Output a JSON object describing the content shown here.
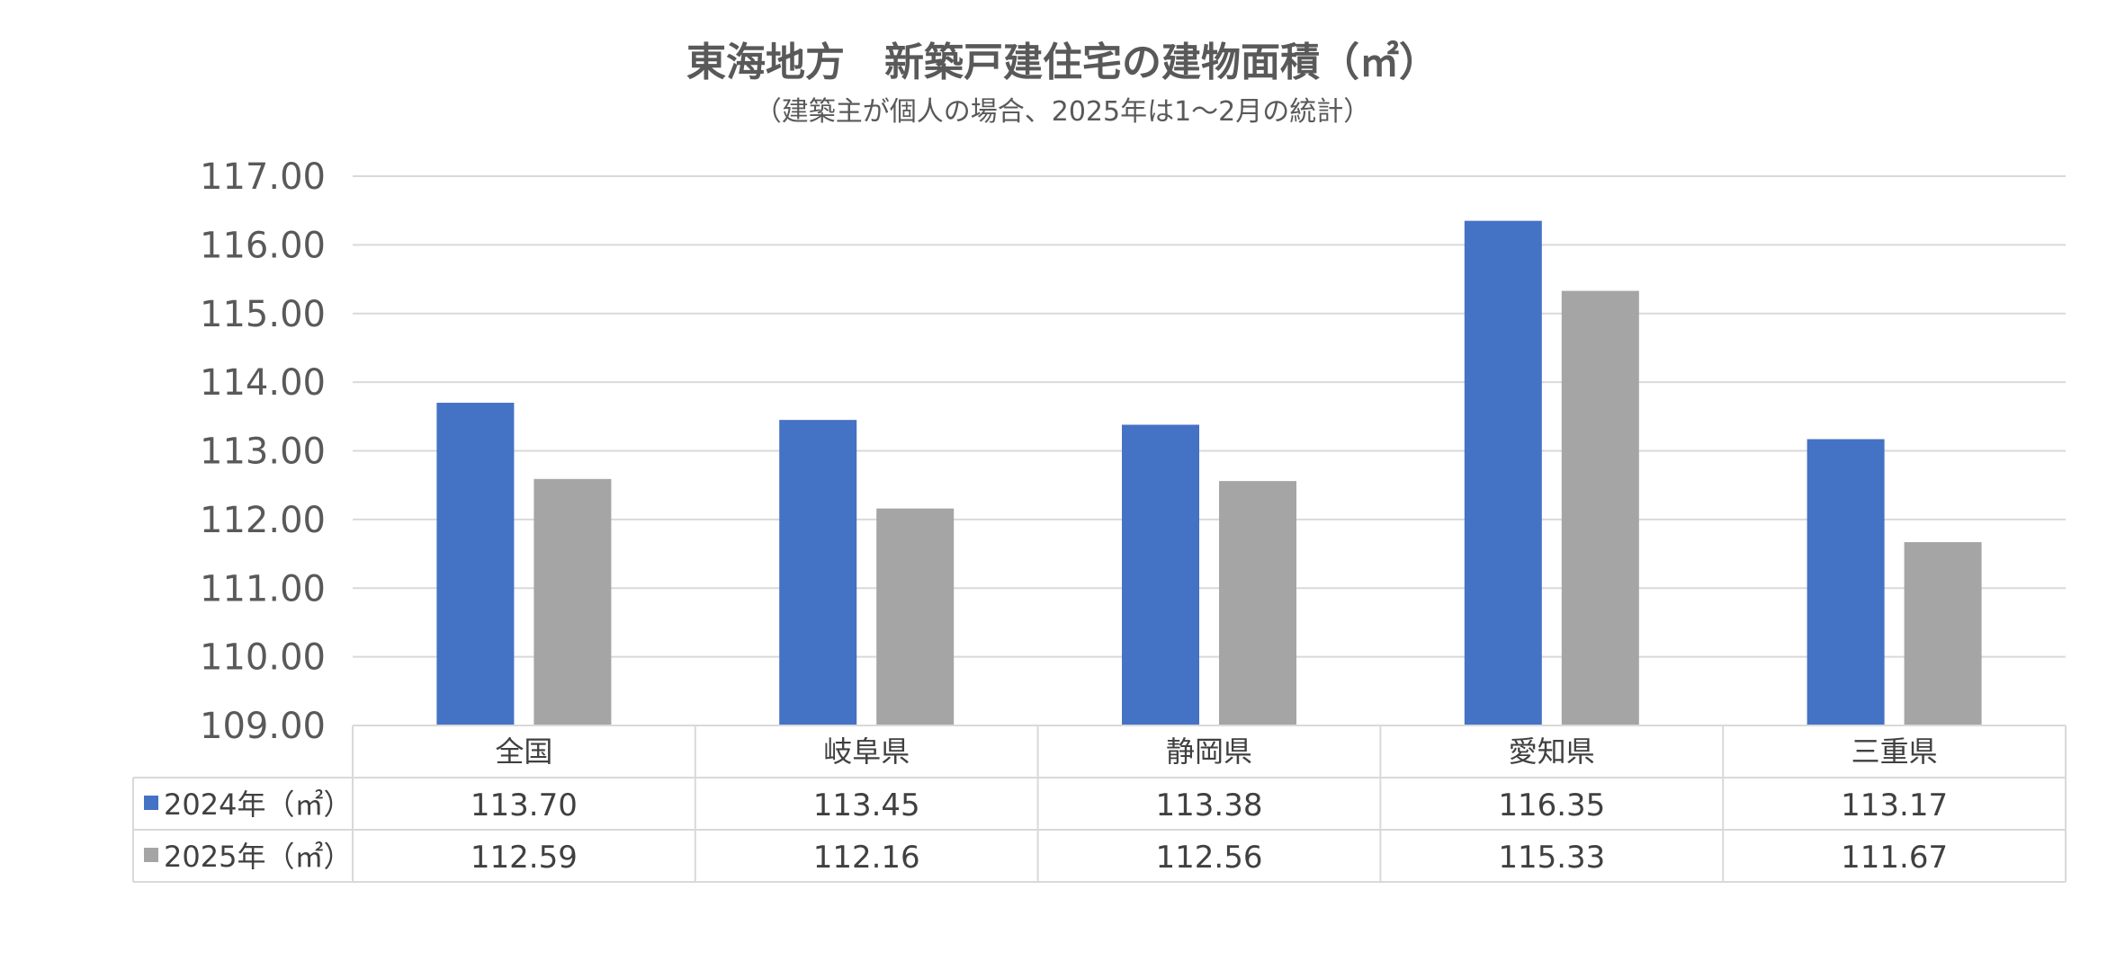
{
  "chart_data": {
    "type": "bar",
    "title": "東海地方　新築戸建住宅の建物面積（㎡）",
    "subtitle": "（建築主が個人の場合、2025年は1～2月の統計）",
    "categories": [
      "全国",
      "岐阜県",
      "静岡県",
      "愛知県",
      "三重県"
    ],
    "series": [
      {
        "name": "2024年（㎡）",
        "color": "#4472C4",
        "values": [
          113.7,
          113.45,
          113.38,
          116.35,
          113.17
        ],
        "labels": [
          "113.70",
          "113.45",
          "113.38",
          "116.35",
          "113.17"
        ]
      },
      {
        "name": "2025年（㎡）",
        "color": "#A5A5A5",
        "values": [
          112.59,
          112.16,
          112.56,
          115.33,
          111.67
        ],
        "labels": [
          "112.59",
          "112.16",
          "112.56",
          "115.33",
          "111.67"
        ]
      }
    ],
    "ylim": [
      109,
      117
    ],
    "yticks": [
      "117.00",
      "116.00",
      "115.00",
      "114.00",
      "113.00",
      "112.00",
      "111.00",
      "110.00",
      "109.00"
    ],
    "grid": true,
    "legend": "data-table"
  }
}
